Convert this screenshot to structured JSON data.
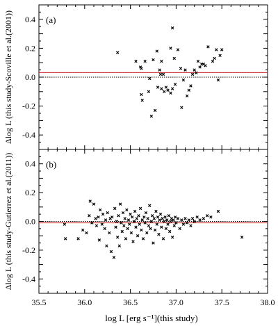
{
  "chart_data": [
    {
      "type": "scatter",
      "panel_label": "(a)",
      "ylabel": "Δlog L (this study-Scoville et al.(2001))",
      "xlim": [
        35.5,
        38.0
      ],
      "ylim": [
        -0.5,
        0.5
      ],
      "yticks": [
        "-0.4",
        "-0.2",
        "0.0",
        "0.2",
        "0.4"
      ],
      "reference_lines": [
        {
          "y": 0.032,
          "style": "solid",
          "color": "#cc2a2a"
        },
        {
          "y": 0.0,
          "style": "dotted",
          "color": "#000000"
        }
      ],
      "series": [
        {
          "marker": "x",
          "points": [
            [
              36.36,
              0.17
            ],
            [
              36.56,
              0.11
            ],
            [
              36.61,
              0.07
            ],
            [
              36.62,
              0.06
            ],
            [
              36.66,
              0.11
            ],
            [
              36.75,
              0.12
            ],
            [
              36.79,
              0.18
            ],
            [
              36.84,
              0.11
            ],
            [
              36.94,
              0.2
            ],
            [
              36.96,
              0.34
            ],
            [
              36.98,
              0.13
            ],
            [
              37.02,
              0.19
            ],
            [
              36.63,
              -0.16
            ],
            [
              36.7,
              -0.1
            ],
            [
              36.73,
              -0.27
            ],
            [
              36.77,
              -0.23
            ],
            [
              36.8,
              -0.07
            ],
            [
              36.82,
              0.05
            ],
            [
              36.84,
              -0.08
            ],
            [
              36.87,
              -0.1
            ],
            [
              36.89,
              -0.07
            ],
            [
              36.91,
              -0.09
            ],
            [
              36.94,
              -0.11
            ],
            [
              36.96,
              -0.08
            ],
            [
              36.71,
              -0.01
            ],
            [
              36.83,
              0.02
            ],
            [
              36.86,
              0.02
            ],
            [
              36.62,
              -0.12
            ],
            [
              37.05,
              0.06
            ],
            [
              37.08,
              -0.02
            ],
            [
              37.1,
              0.05
            ],
            [
              37.12,
              -0.13
            ],
            [
              37.16,
              -0.06
            ],
            [
              37.18,
              0.02
            ],
            [
              37.2,
              0.05
            ],
            [
              37.22,
              0.03
            ],
            [
              37.26,
              0.07
            ],
            [
              37.28,
              0.09
            ],
            [
              37.3,
              0.09
            ],
            [
              37.32,
              0.08
            ],
            [
              37.35,
              0.21
            ],
            [
              37.4,
              0.11
            ],
            [
              37.42,
              0.13
            ],
            [
              37.44,
              0.19
            ],
            [
              37.48,
              0.15
            ],
            [
              37.5,
              0.19
            ],
            [
              37.46,
              -0.02
            ],
            [
              37.06,
              -0.21
            ],
            [
              37.14,
              -0.09
            ],
            [
              36.99,
              -0.05
            ],
            [
              37.24,
              0.11
            ]
          ]
        }
      ]
    },
    {
      "type": "scatter",
      "panel_label": "(b)",
      "ylabel": "Δlog L (this study-Gutierrez et al.(2011))",
      "xlabel": "log L [erg s⁻¹](this study)",
      "xlim": [
        35.5,
        38.0
      ],
      "ylim": [
        -0.5,
        0.5
      ],
      "xticks": [
        "35.5",
        "36.0",
        "36.5",
        "37.0",
        "37.5",
        "38.0"
      ],
      "yticks": [
        "-0.4",
        "-0.2",
        "0.0",
        "0.2",
        "0.4"
      ],
      "reference_lines": [
        {
          "y": -0.01,
          "style": "solid",
          "color": "#cc2a2a"
        },
        {
          "y": 0.0,
          "style": "dotted",
          "color": "#000000"
        }
      ],
      "series": [
        {
          "marker": "x",
          "points": [
            [
              35.78,
              -0.02
            ],
            [
              35.79,
              -0.12
            ],
            [
              35.93,
              -0.12
            ],
            [
              35.98,
              -0.06
            ],
            [
              36.02,
              -0.08
            ],
            [
              36.05,
              0.04
            ],
            [
              36.06,
              0.14
            ],
            [
              36.08,
              -0.01
            ],
            [
              36.1,
              0.12
            ],
            [
              36.12,
              0.02
            ],
            [
              36.13,
              -0.03
            ],
            [
              36.15,
              0.03
            ],
            [
              36.16,
              -0.13
            ],
            [
              36.17,
              0.08
            ],
            [
              36.19,
              -0.02
            ],
            [
              36.2,
              0.05
            ],
            [
              36.22,
              -0.05
            ],
            [
              36.23,
              0.01
            ],
            [
              36.24,
              -0.17
            ],
            [
              36.25,
              0.06
            ],
            [
              36.27,
              -0.08
            ],
            [
              36.28,
              0.02
            ],
            [
              36.29,
              -0.21
            ],
            [
              36.3,
              0.03
            ],
            [
              36.32,
              -0.25
            ],
            [
              36.33,
              0.09
            ],
            [
              36.34,
              -0.04
            ],
            [
              36.35,
              0.0
            ],
            [
              36.36,
              -0.11
            ],
            [
              36.37,
              0.04
            ],
            [
              36.38,
              -0.17
            ],
            [
              36.39,
              0.12
            ],
            [
              36.4,
              -0.01
            ],
            [
              36.41,
              -0.07
            ],
            [
              36.42,
              0.06
            ],
            [
              36.43,
              -0.03
            ],
            [
              36.44,
              0.02
            ],
            [
              36.45,
              -0.12
            ],
            [
              36.46,
              0.08
            ],
            [
              36.47,
              -0.05
            ],
            [
              36.48,
              0.01
            ],
            [
              36.49,
              -0.02
            ],
            [
              36.5,
              0.05
            ],
            [
              36.51,
              -0.08
            ],
            [
              36.52,
              0.03
            ],
            [
              36.53,
              -0.14
            ],
            [
              36.54,
              0.0
            ],
            [
              36.55,
              0.07
            ],
            [
              36.56,
              -0.04
            ],
            [
              36.57,
              0.02
            ],
            [
              36.58,
              -0.1
            ],
            [
              36.59,
              0.04
            ],
            [
              36.6,
              -0.02
            ],
            [
              36.61,
              0.09
            ],
            [
              36.62,
              -0.06
            ],
            [
              36.63,
              0.01
            ],
            [
              36.64,
              -0.12
            ],
            [
              36.65,
              0.03
            ],
            [
              36.66,
              -0.01
            ],
            [
              36.67,
              0.06
            ],
            [
              36.68,
              -0.08
            ],
            [
              36.69,
              0.02
            ],
            [
              36.7,
              -0.03
            ],
            [
              36.71,
              0.11
            ],
            [
              36.72,
              -0.05
            ],
            [
              36.73,
              0.0
            ],
            [
              36.74,
              0.04
            ],
            [
              36.75,
              -0.15
            ],
            [
              36.76,
              0.02
            ],
            [
              36.77,
              -0.06
            ],
            [
              36.78,
              0.07
            ],
            [
              36.79,
              -0.02
            ],
            [
              36.8,
              0.03
            ],
            [
              36.81,
              -0.09
            ],
            [
              36.82,
              0.01
            ],
            [
              36.83,
              0.05
            ],
            [
              36.84,
              -0.04
            ],
            [
              36.85,
              0.02
            ],
            [
              36.86,
              -0.12
            ],
            [
              36.87,
              0.0
            ],
            [
              36.88,
              0.03
            ],
            [
              36.89,
              -0.05
            ],
            [
              36.9,
              0.01
            ],
            [
              36.91,
              -0.02
            ],
            [
              36.92,
              0.04
            ],
            [
              36.93,
              -0.07
            ],
            [
              36.94,
              0.0
            ],
            [
              36.95,
              0.02
            ],
            [
              36.96,
              -0.11
            ],
            [
              36.97,
              0.01
            ],
            [
              36.98,
              -0.03
            ],
            [
              36.99,
              0.03
            ],
            [
              37.0,
              -0.01
            ],
            [
              37.02,
              0.02
            ],
            [
              37.04,
              -0.05
            ],
            [
              37.06,
              0.01
            ],
            [
              37.08,
              -0.02
            ],
            [
              37.1,
              0.02
            ],
            [
              37.12,
              -0.01
            ],
            [
              37.14,
              0.01
            ],
            [
              37.16,
              -0.03
            ],
            [
              37.18,
              0.02
            ],
            [
              37.2,
              0.0
            ],
            [
              37.23,
              0.03
            ],
            [
              37.26,
              0.01
            ],
            [
              37.3,
              0.02
            ],
            [
              37.34,
              0.04
            ],
            [
              37.38,
              0.03
            ],
            [
              37.46,
              0.07
            ],
            [
              37.72,
              -0.11
            ]
          ]
        }
      ]
    }
  ]
}
